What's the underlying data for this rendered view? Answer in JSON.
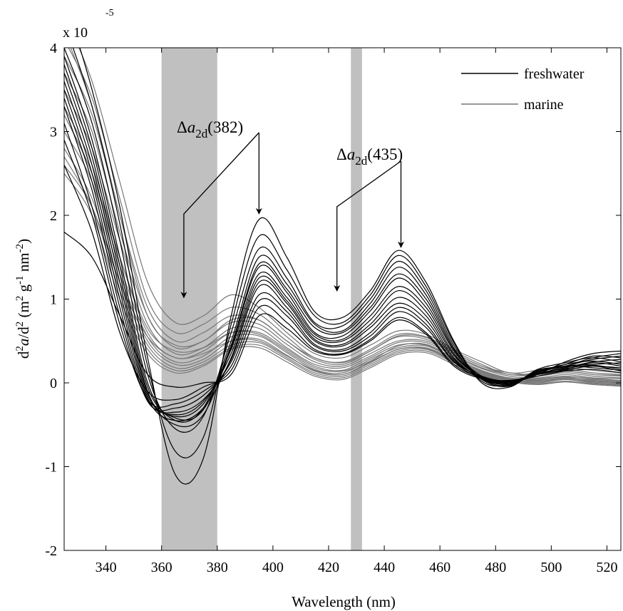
{
  "chart_data": {
    "type": "line",
    "xlabel": "Wavelength (nm)",
    "ylabel_parts": [
      "d",
      "2",
      "a",
      "/d",
      "2",
      " (m",
      "2",
      " g",
      "-1",
      " nm",
      "-2",
      ")"
    ],
    "y_multiplier": "x 10",
    "y_multiplier_exp": "-5",
    "xlim": [
      325,
      525
    ],
    "ylim": [
      -2,
      4
    ],
    "x_ticks": [
      340,
      360,
      380,
      400,
      420,
      440,
      460,
      480,
      500,
      520
    ],
    "y_ticks": [
      -2,
      -1,
      0,
      1,
      2,
      3,
      4
    ],
    "grid": false,
    "legend_position": "top-right",
    "legend": [
      {
        "name": "freshwater",
        "color": "#000000"
      },
      {
        "name": "marine",
        "color": "#777777"
      }
    ],
    "shaded_regions": [
      [
        360,
        380
      ],
      [
        428,
        432
      ]
    ],
    "annotations": [
      {
        "label_prefix": "Δ",
        "label_var": "a",
        "label_sub": "2d",
        "label_suffix": "(382)",
        "arrows_to": [
          [
            368,
            1.0
          ],
          [
            395,
            2.0
          ]
        ]
      },
      {
        "label_prefix": "Δ",
        "label_var": "a",
        "label_sub": "2d",
        "label_suffix": "(435)",
        "arrows_to": [
          [
            423,
            1.08
          ],
          [
            446,
            1.6
          ]
        ]
      }
    ],
    "series_groups": [
      {
        "name": "freshwater",
        "color": "#000000",
        "key_x": [
          325,
          335,
          345,
          355,
          365,
          375,
          385,
          395,
          405,
          415,
          425,
          435,
          445,
          455,
          465,
          475,
          485,
          495,
          505,
          515,
          525
        ],
        "curves": [
          [
            4.6,
            3.5,
            2.1,
            0.3,
            -1.1,
            -0.9,
            0.8,
            1.95,
            1.5,
            0.85,
            0.78,
            1.1,
            1.58,
            1.2,
            0.5,
            0.0,
            -0.05,
            0.15,
            0.2,
            0.3,
            0.35
          ],
          [
            4.3,
            3.3,
            1.9,
            0.2,
            -0.82,
            -0.65,
            0.7,
            1.75,
            1.35,
            0.8,
            0.72,
            1.05,
            1.52,
            1.15,
            0.48,
            0.02,
            -0.02,
            0.12,
            0.22,
            0.32,
            0.3
          ],
          [
            4.0,
            3.1,
            1.7,
            0.1,
            -0.55,
            -0.4,
            0.6,
            1.6,
            1.25,
            0.72,
            0.68,
            1.0,
            1.45,
            1.1,
            0.45,
            0.05,
            0.0,
            0.1,
            0.25,
            0.35,
            0.38
          ],
          [
            3.9,
            2.9,
            1.5,
            0.0,
            -0.45,
            -0.3,
            0.5,
            1.5,
            1.18,
            0.7,
            0.62,
            0.95,
            1.38,
            1.05,
            0.42,
            0.04,
            -0.04,
            0.14,
            0.2,
            0.28,
            0.32
          ],
          [
            3.8,
            2.8,
            1.4,
            -0.05,
            -0.42,
            -0.32,
            0.45,
            1.42,
            1.12,
            0.66,
            0.6,
            0.9,
            1.3,
            1.0,
            0.4,
            0.08,
            0.02,
            0.1,
            0.18,
            0.25,
            0.28
          ],
          [
            3.7,
            2.7,
            1.3,
            -0.1,
            -0.5,
            -0.38,
            0.42,
            1.38,
            1.08,
            0.6,
            0.56,
            0.86,
            1.25,
            0.95,
            0.38,
            0.05,
            -0.03,
            0.16,
            0.24,
            0.3,
            0.25
          ],
          [
            3.6,
            2.6,
            1.2,
            -0.12,
            -0.4,
            -0.25,
            0.4,
            1.3,
            1.02,
            0.58,
            0.52,
            0.8,
            1.15,
            0.9,
            0.35,
            0.06,
            0.0,
            0.12,
            0.2,
            0.22,
            0.24
          ],
          [
            3.5,
            2.5,
            1.1,
            -0.15,
            -0.38,
            -0.22,
            0.35,
            1.25,
            0.98,
            0.55,
            0.5,
            0.75,
            1.1,
            0.85,
            0.33,
            0.07,
            0.03,
            0.1,
            0.16,
            0.24,
            0.2
          ],
          [
            3.4,
            2.4,
            1.0,
            -0.18,
            -0.45,
            -0.3,
            0.3,
            1.2,
            0.95,
            0.52,
            0.46,
            0.7,
            1.02,
            0.8,
            0.3,
            0.05,
            -0.02,
            0.13,
            0.22,
            0.26,
            0.22
          ],
          [
            3.3,
            2.3,
            0.9,
            -0.2,
            -0.35,
            -0.2,
            0.28,
            1.15,
            0.9,
            0.5,
            0.44,
            0.66,
            0.95,
            0.75,
            0.28,
            0.06,
            0.01,
            0.1,
            0.19,
            0.2,
            0.18
          ],
          [
            3.1,
            2.1,
            0.8,
            -0.22,
            -0.3,
            -0.15,
            0.25,
            1.05,
            0.85,
            0.46,
            0.4,
            0.6,
            0.9,
            0.7,
            0.26,
            0.08,
            0.02,
            0.11,
            0.17,
            0.21,
            0.16
          ],
          [
            2.9,
            2.0,
            0.7,
            -0.2,
            -0.25,
            -0.1,
            0.2,
            0.98,
            0.8,
            0.44,
            0.38,
            0.56,
            0.85,
            0.66,
            0.25,
            0.05,
            -0.01,
            0.12,
            0.2,
            0.18,
            0.15
          ],
          [
            2.6,
            1.8,
            0.6,
            -0.1,
            -0.2,
            -0.05,
            0.15,
            0.9,
            0.72,
            0.4,
            0.35,
            0.52,
            0.78,
            0.6,
            0.22,
            0.06,
            0.0,
            0.1,
            0.15,
            0.2,
            0.14
          ],
          [
            1.8,
            1.5,
            0.8,
            0.1,
            -0.05,
            0.0,
            0.1,
            0.8,
            0.65,
            0.38,
            0.34,
            0.5,
            0.75,
            0.58,
            0.2,
            0.05,
            0.02,
            0.08,
            0.14,
            0.16,
            0.12
          ]
        ]
      },
      {
        "name": "marine",
        "color": "#777777",
        "key_x": [
          325,
          335,
          345,
          355,
          365,
          375,
          385,
          395,
          405,
          415,
          425,
          435,
          445,
          455,
          465,
          475,
          485,
          495,
          505,
          515,
          525
        ],
        "curves": [
          [
            4.4,
            3.6,
            2.4,
            1.2,
            0.72,
            0.8,
            1.05,
            0.9,
            0.6,
            0.35,
            0.3,
            0.45,
            0.62,
            0.58,
            0.4,
            0.25,
            0.12,
            0.15,
            0.18,
            0.15,
            0.12
          ],
          [
            4.1,
            3.4,
            2.2,
            1.0,
            0.6,
            0.7,
            0.9,
            0.82,
            0.55,
            0.3,
            0.25,
            0.4,
            0.58,
            0.55,
            0.38,
            0.22,
            0.1,
            0.12,
            0.16,
            0.12,
            0.1
          ],
          [
            3.9,
            3.2,
            2.0,
            0.9,
            0.5,
            0.6,
            0.8,
            0.75,
            0.5,
            0.28,
            0.22,
            0.38,
            0.55,
            0.52,
            0.36,
            0.2,
            0.12,
            0.1,
            0.14,
            0.1,
            0.08
          ],
          [
            3.7,
            3.0,
            1.8,
            0.8,
            0.42,
            0.5,
            0.72,
            0.7,
            0.46,
            0.25,
            0.2,
            0.35,
            0.5,
            0.5,
            0.34,
            0.18,
            0.1,
            0.08,
            0.12,
            0.08,
            0.06
          ],
          [
            3.5,
            2.8,
            1.7,
            0.7,
            0.35,
            0.42,
            0.65,
            0.65,
            0.42,
            0.22,
            0.18,
            0.32,
            0.48,
            0.48,
            0.32,
            0.17,
            0.08,
            0.06,
            0.1,
            0.06,
            0.05
          ],
          [
            3.3,
            2.6,
            1.5,
            0.6,
            0.3,
            0.38,
            0.6,
            0.6,
            0.4,
            0.2,
            0.15,
            0.3,
            0.45,
            0.45,
            0.3,
            0.15,
            0.06,
            0.05,
            0.08,
            0.05,
            0.03
          ],
          [
            3.2,
            2.5,
            1.4,
            0.55,
            0.25,
            0.32,
            0.55,
            0.56,
            0.36,
            0.16,
            0.12,
            0.28,
            0.42,
            0.44,
            0.28,
            0.14,
            0.05,
            0.03,
            0.06,
            0.04,
            0.02
          ],
          [
            3.0,
            2.4,
            1.3,
            0.5,
            0.22,
            0.28,
            0.5,
            0.52,
            0.33,
            0.14,
            0.1,
            0.25,
            0.4,
            0.42,
            0.27,
            0.12,
            0.04,
            0.02,
            0.05,
            0.02,
            0.0
          ],
          [
            2.8,
            2.2,
            1.2,
            0.45,
            0.18,
            0.25,
            0.45,
            0.48,
            0.3,
            0.12,
            0.08,
            0.22,
            0.38,
            0.4,
            0.25,
            0.1,
            0.03,
            0.0,
            0.04,
            0.0,
            -0.02
          ],
          [
            2.7,
            2.1,
            1.1,
            0.4,
            0.15,
            0.22,
            0.42,
            0.45,
            0.28,
            0.1,
            0.06,
            0.2,
            0.36,
            0.38,
            0.24,
            0.09,
            0.02,
            -0.01,
            0.02,
            -0.01,
            -0.03
          ],
          [
            2.5,
            2.0,
            1.0,
            0.35,
            0.12,
            0.2,
            0.4,
            0.42,
            0.25,
            0.08,
            0.04,
            0.18,
            0.34,
            0.36,
            0.22,
            0.08,
            0.01,
            -0.02,
            0.01,
            -0.02,
            -0.04
          ],
          [
            4.2,
            3.3,
            2.0,
            0.8,
            0.45,
            0.5,
            0.75,
            0.75,
            0.5,
            0.3,
            0.24,
            0.38,
            0.56,
            0.54,
            0.36,
            0.2,
            0.1,
            0.1,
            0.14,
            0.1,
            0.09
          ],
          [
            3.2,
            2.5,
            1.5,
            0.65,
            0.38,
            0.42,
            0.6,
            0.58,
            0.38,
            0.18,
            0.14,
            0.26,
            0.44,
            0.46,
            0.29,
            0.13,
            0.05,
            0.04,
            0.07,
            0.03,
            0.01
          ],
          [
            2.6,
            2.1,
            1.2,
            0.55,
            0.3,
            0.35,
            0.5,
            0.5,
            0.32,
            0.15,
            0.1,
            0.24,
            0.4,
            0.41,
            0.26,
            0.11,
            0.03,
            0.01,
            0.04,
            0.01,
            -0.01
          ]
        ]
      }
    ]
  }
}
